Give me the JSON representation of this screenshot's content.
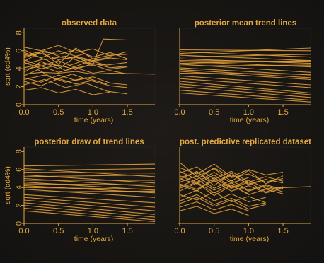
{
  "figure": {
    "accent": "#e3a83f",
    "line_color": "#e2a13a",
    "background": "#161412"
  },
  "chart_data": [
    {
      "type": "line",
      "title": "observed data",
      "xlabel": "time (years)",
      "ylabel": "sqrt (cd4%)",
      "xlim": [
        0,
        1.9
      ],
      "ylim": [
        0,
        8.5
      ],
      "xticks": [
        "0.0",
        "0.5",
        "1.0",
        "1.5"
      ],
      "yticks": [
        "0",
        "2",
        "4",
        "6",
        "8"
      ],
      "series": [
        {
          "x": [
            0.0,
            0.25,
            0.5,
            0.75,
            1.0,
            1.25,
            1.5
          ],
          "y": [
            5.4,
            5.7,
            5.0,
            5.3,
            4.8,
            5.2,
            5.0
          ]
        },
        {
          "x": [
            0.0,
            0.25,
            0.5,
            0.75,
            1.0,
            1.25,
            1.5
          ],
          "y": [
            4.8,
            5.9,
            4.5,
            6.3,
            5.1,
            5.5,
            5.6
          ]
        },
        {
          "x": [
            0.0,
            0.3,
            0.6,
            0.9,
            1.2
          ],
          "y": [
            6.1,
            5.0,
            5.4,
            4.6,
            4.4
          ]
        },
        {
          "x": [
            0.0,
            0.25,
            0.5,
            0.75,
            1.0,
            1.25,
            1.5
          ],
          "y": [
            3.9,
            4.3,
            3.6,
            4.1,
            3.5,
            3.8,
            3.4
          ]
        },
        {
          "x": [
            0.0,
            0.25,
            0.5,
            0.75,
            1.0
          ],
          "y": [
            5.0,
            4.3,
            4.9,
            4.1,
            4.4
          ]
        },
        {
          "x": [
            0.0,
            0.2,
            0.45,
            0.7,
            1.0,
            1.25,
            1.5
          ],
          "y": [
            3.2,
            3.9,
            2.8,
            3.4,
            2.6,
            2.1,
            1.9
          ]
        },
        {
          "x": [
            0.0,
            0.3,
            0.6,
            0.9,
            1.2,
            1.5
          ],
          "y": [
            2.2,
            2.8,
            1.9,
            2.4,
            1.5,
            1.2
          ]
        },
        {
          "x": [
            0.0,
            0.25,
            0.5,
            0.75,
            1.0,
            1.25
          ],
          "y": [
            1.6,
            1.9,
            1.3,
            1.7,
            1.1,
            1.4
          ]
        },
        {
          "x": [
            0.0,
            0.25,
            0.5,
            0.75,
            1.0,
            1.25,
            1.5
          ],
          "y": [
            6.4,
            6.0,
            6.6,
            5.8,
            6.2,
            5.4,
            5.9
          ]
        },
        {
          "x": [
            0.0,
            0.3,
            0.6,
            0.9,
            1.2,
            1.5
          ],
          "y": [
            4.5,
            5.1,
            3.8,
            4.7,
            3.9,
            4.2
          ]
        },
        {
          "x": [
            0.0,
            0.25,
            0.5,
            0.75,
            1.0,
            1.15,
            1.5
          ],
          "y": [
            3.6,
            4.8,
            4.0,
            5.3,
            4.5,
            7.3,
            7.2
          ]
        },
        {
          "x": [
            0.0,
            0.3,
            0.6,
            0.9,
            1.2
          ],
          "y": [
            2.8,
            3.3,
            2.5,
            3.0,
            2.3
          ]
        },
        {
          "x": [
            0.0,
            0.25,
            0.5,
            0.75,
            1.0,
            1.25,
            1.9
          ],
          "y": [
            3.4,
            3.6,
            3.5,
            3.7,
            3.4,
            3.5,
            3.4
          ]
        },
        {
          "x": [
            0.0,
            0.25,
            0.5,
            0.75,
            1.0,
            1.25
          ],
          "y": [
            5.8,
            5.2,
            6.0,
            5.4,
            4.9,
            5.3
          ]
        },
        {
          "x": [
            0.0,
            0.3,
            0.6,
            0.9,
            1.2,
            1.5
          ],
          "y": [
            4.1,
            4.6,
            4.2,
            5.0,
            4.4,
            4.7
          ]
        },
        {
          "x": [
            0.0,
            0.25,
            0.5,
            0.75,
            1.0
          ],
          "y": [
            2.6,
            2.1,
            2.9,
            2.3,
            2.7
          ]
        },
        {
          "x": [
            0.0,
            0.25,
            0.5,
            0.75,
            1.0,
            1.25,
            1.5
          ],
          "y": [
            4.7,
            4.0,
            4.4,
            3.9,
            4.6,
            4.1,
            4.3
          ]
        },
        {
          "x": [
            0.0,
            0.3,
            0.6,
            0.9
          ],
          "y": [
            5.2,
            6.0,
            5.1,
            5.7
          ]
        },
        {
          "x": [
            0.0,
            0.25,
            0.5,
            0.75,
            1.0,
            1.25,
            1.5
          ],
          "y": [
            3.0,
            2.5,
            3.3,
            2.7,
            3.1,
            2.4,
            2.2
          ]
        },
        {
          "x": [
            0.0,
            0.25,
            0.5,
            0.75,
            1.0,
            1.25,
            1.5
          ],
          "y": [
            5.5,
            5.9,
            5.6,
            6.1,
            5.3,
            5.8,
            5.1
          ]
        }
      ]
    },
    {
      "type": "line",
      "title": "posterior mean trend lines",
      "xlabel": "time (years)",
      "ylabel": "",
      "xlim": [
        0,
        1.9
      ],
      "ylim": [
        0,
        8.5
      ],
      "xticks": [
        "0.0",
        "0.5",
        "1.0",
        "1.5"
      ],
      "yticks": [],
      "series": [
        {
          "x": [
            0,
            1.9
          ],
          "y": [
            6.1,
            6.0
          ]
        },
        {
          "x": [
            0,
            1.9
          ],
          "y": [
            5.9,
            5.3
          ]
        },
        {
          "x": [
            0,
            1.9
          ],
          "y": [
            5.7,
            6.3
          ]
        },
        {
          "x": [
            0,
            1.9
          ],
          "y": [
            5.5,
            4.9
          ]
        },
        {
          "x": [
            0,
            1.9
          ],
          "y": [
            5.3,
            5.6
          ]
        },
        {
          "x": [
            0,
            1.9
          ],
          "y": [
            5.1,
            4.6
          ]
        },
        {
          "x": [
            0,
            1.9
          ],
          "y": [
            4.9,
            4.8
          ]
        },
        {
          "x": [
            0,
            1.9
          ],
          "y": [
            4.8,
            4.2
          ]
        },
        {
          "x": [
            0,
            1.9
          ],
          "y": [
            4.6,
            4.9
          ]
        },
        {
          "x": [
            0,
            1.9
          ],
          "y": [
            4.5,
            3.6
          ]
        },
        {
          "x": [
            0,
            1.9
          ],
          "y": [
            4.3,
            4.4
          ]
        },
        {
          "x": [
            0,
            1.9
          ],
          "y": [
            4.1,
            3.3
          ]
        },
        {
          "x": [
            0,
            1.9
          ],
          "y": [
            3.9,
            3.0
          ]
        },
        {
          "x": [
            0,
            1.9
          ],
          "y": [
            3.7,
            2.8
          ]
        },
        {
          "x": [
            0,
            1.9
          ],
          "y": [
            3.5,
            3.4
          ]
        },
        {
          "x": [
            0,
            1.9
          ],
          "y": [
            3.2,
            2.2
          ]
        },
        {
          "x": [
            0,
            1.9
          ],
          "y": [
            2.9,
            1.9
          ]
        },
        {
          "x": [
            0,
            1.9
          ],
          "y": [
            2.6,
            1.3
          ]
        },
        {
          "x": [
            0,
            1.9
          ],
          "y": [
            2.3,
            1.1
          ]
        },
        {
          "x": [
            0,
            1.9
          ],
          "y": [
            2.0,
            0.8
          ]
        },
        {
          "x": [
            0,
            1.9
          ],
          "y": [
            1.6,
            0.5
          ]
        },
        {
          "x": [
            0,
            1.9
          ],
          "y": [
            1.3,
            0.3
          ]
        }
      ]
    },
    {
      "type": "line",
      "title": "posterior draw of trend lines",
      "xlabel": "time (years)",
      "ylabel": "sqrt (cd4%)",
      "xlim": [
        0,
        1.9
      ],
      "ylim": [
        0,
        8.5
      ],
      "xticks": [
        "0.0",
        "0.5",
        "1.0",
        "1.5"
      ],
      "yticks": [
        "0",
        "2",
        "4",
        "6",
        "8"
      ],
      "series": [
        {
          "x": [
            0,
            1.9
          ],
          "y": [
            6.4,
            6.6
          ]
        },
        {
          "x": [
            0,
            1.9
          ],
          "y": [
            6.1,
            5.2
          ]
        },
        {
          "x": [
            0,
            1.9
          ],
          "y": [
            5.9,
            6.1
          ]
        },
        {
          "x": [
            0,
            1.9
          ],
          "y": [
            5.7,
            5.6
          ]
        },
        {
          "x": [
            0,
            1.9
          ],
          "y": [
            5.4,
            4.5
          ]
        },
        {
          "x": [
            0,
            1.9
          ],
          "y": [
            5.2,
            5.4
          ]
        },
        {
          "x": [
            0,
            1.9
          ],
          "y": [
            5.0,
            4.1
          ]
        },
        {
          "x": [
            0,
            1.9
          ],
          "y": [
            4.8,
            4.8
          ]
        },
        {
          "x": [
            0,
            1.9
          ],
          "y": [
            4.6,
            3.7
          ]
        },
        {
          "x": [
            0,
            1.9
          ],
          "y": [
            4.4,
            4.3
          ]
        },
        {
          "x": [
            0,
            1.9
          ],
          "y": [
            4.2,
            3.4
          ]
        },
        {
          "x": [
            0,
            1.9
          ],
          "y": [
            4.0,
            3.8
          ]
        },
        {
          "x": [
            0,
            1.9
          ],
          "y": [
            3.8,
            2.9
          ]
        },
        {
          "x": [
            0,
            1.9
          ],
          "y": [
            3.5,
            3.6
          ]
        },
        {
          "x": [
            0,
            1.9
          ],
          "y": [
            3.2,
            2.3
          ]
        },
        {
          "x": [
            0,
            1.9
          ],
          "y": [
            2.9,
            1.8
          ]
        },
        {
          "x": [
            0,
            1.9
          ],
          "y": [
            2.6,
            1.4
          ]
        },
        {
          "x": [
            0,
            1.9
          ],
          "y": [
            2.3,
            1.0
          ]
        },
        {
          "x": [
            0,
            1.9
          ],
          "y": [
            2.0,
            0.7
          ]
        },
        {
          "x": [
            0,
            1.9
          ],
          "y": [
            1.7,
            0.4
          ]
        },
        {
          "x": [
            0,
            1.9
          ],
          "y": [
            1.4,
            0.2
          ]
        }
      ]
    },
    {
      "type": "line",
      "title": "post. predictive replicated dataset",
      "xlabel": "time (years)",
      "ylabel": "",
      "xlim": [
        0,
        1.9
      ],
      "ylim": [
        0,
        8.5
      ],
      "xticks": [
        "0.0",
        "0.5",
        "1.0",
        "1.5"
      ],
      "yticks": [],
      "series": [
        {
          "x": [
            0.0,
            0.25,
            0.5,
            0.75,
            1.0,
            1.25,
            1.5
          ],
          "y": [
            5.6,
            6.3,
            4.9,
            5.8,
            4.6,
            5.2,
            4.7
          ]
        },
        {
          "x": [
            0.0,
            0.25,
            0.5,
            0.75,
            1.0,
            1.25,
            1.5
          ],
          "y": [
            6.8,
            5.2,
            6.1,
            4.7,
            5.9,
            4.4,
            5.3
          ]
        },
        {
          "x": [
            0.0,
            0.25,
            0.5,
            0.75,
            1.0,
            1.25
          ],
          "y": [
            4.9,
            5.8,
            4.2,
            5.6,
            4.3,
            4.9
          ]
        },
        {
          "x": [
            0.0,
            0.25,
            0.5,
            0.75,
            1.0,
            1.25,
            1.5
          ],
          "y": [
            4.3,
            3.6,
            5.1,
            3.9,
            4.6,
            3.5,
            4.1
          ]
        },
        {
          "x": [
            0.0,
            0.25,
            0.5,
            0.75,
            1.0,
            1.25,
            1.9
          ],
          "y": [
            5.0,
            4.4,
            5.4,
            4.0,
            4.8,
            3.9,
            4.1
          ]
        },
        {
          "x": [
            0.0,
            0.25,
            0.5,
            0.75,
            1.0
          ],
          "y": [
            3.6,
            4.5,
            3.1,
            4.2,
            3.3
          ]
        },
        {
          "x": [
            0.0,
            0.25,
            0.5,
            0.75,
            1.0,
            1.25,
            1.5
          ],
          "y": [
            5.8,
            4.9,
            6.2,
            5.1,
            5.5,
            4.6,
            5.0
          ]
        },
        {
          "x": [
            0.0,
            0.25,
            0.5,
            0.75,
            1.0,
            1.25
          ],
          "y": [
            2.9,
            3.7,
            2.5,
            3.3,
            2.4,
            2.9
          ]
        },
        {
          "x": [
            0.0,
            0.25,
            0.5,
            0.75,
            1.0,
            1.25,
            1.5
          ],
          "y": [
            4.6,
            5.3,
            3.9,
            4.8,
            3.7,
            4.3,
            3.8
          ]
        },
        {
          "x": [
            0.0,
            0.25,
            0.5,
            0.75,
            1.0,
            1.25
          ],
          "y": [
            2.2,
            2.9,
            1.9,
            2.6,
            1.6,
            2.1
          ]
        },
        {
          "x": [
            0.0,
            0.25,
            0.5,
            0.75,
            1.0
          ],
          "y": [
            1.4,
            1.9,
            1.1,
            1.6,
            0.9
          ]
        },
        {
          "x": [
            0.0,
            0.25,
            0.5,
            0.75,
            1.0,
            1.25,
            1.5
          ],
          "y": [
            6.2,
            5.5,
            6.6,
            5.2,
            6.0,
            5.4,
            5.7
          ]
        },
        {
          "x": [
            0.0,
            0.25,
            0.5,
            0.75,
            1.0,
            1.25,
            1.5
          ],
          "y": [
            3.9,
            4.6,
            3.4,
            4.3,
            3.2,
            3.8,
            3.3
          ]
        },
        {
          "x": [
            0.0,
            0.25,
            0.5,
            0.75,
            1.0
          ],
          "y": [
            5.3,
            4.6,
            5.7,
            4.5,
            5.1
          ]
        },
        {
          "x": [
            0.0,
            0.25,
            0.5,
            0.75,
            1.0,
            1.25
          ],
          "y": [
            3.2,
            2.6,
            3.5,
            2.4,
            3.0,
            2.3
          ]
        },
        {
          "x": [
            0.0,
            0.25,
            0.5,
            0.75,
            1.0,
            1.25,
            1.5
          ],
          "y": [
            4.1,
            4.9,
            3.7,
            4.5,
            3.6,
            4.2,
            3.5
          ]
        },
        {
          "x": [
            0.0,
            0.25,
            0.5,
            0.75,
            1.0,
            1.25
          ],
          "y": [
            2.5,
            3.2,
            2.1,
            2.8,
            1.9,
            2.3
          ]
        },
        {
          "x": [
            0.0,
            0.25,
            0.5,
            0.75,
            1.0,
            1.25,
            1.5
          ],
          "y": [
            5.1,
            5.7,
            4.6,
            5.4,
            4.4,
            4.9,
            4.5
          ]
        },
        {
          "x": [
            0.0,
            0.25,
            0.5,
            0.75,
            1.0,
            1.25,
            1.5
          ],
          "y": [
            4.4,
            3.8,
            4.8,
            3.6,
            4.2,
            3.4,
            3.9
          ]
        },
        {
          "x": [
            0.0,
            0.25,
            0.5,
            0.75,
            1.0
          ],
          "y": [
            1.8,
            2.4,
            1.5,
            2.1,
            1.4
          ]
        }
      ]
    }
  ]
}
